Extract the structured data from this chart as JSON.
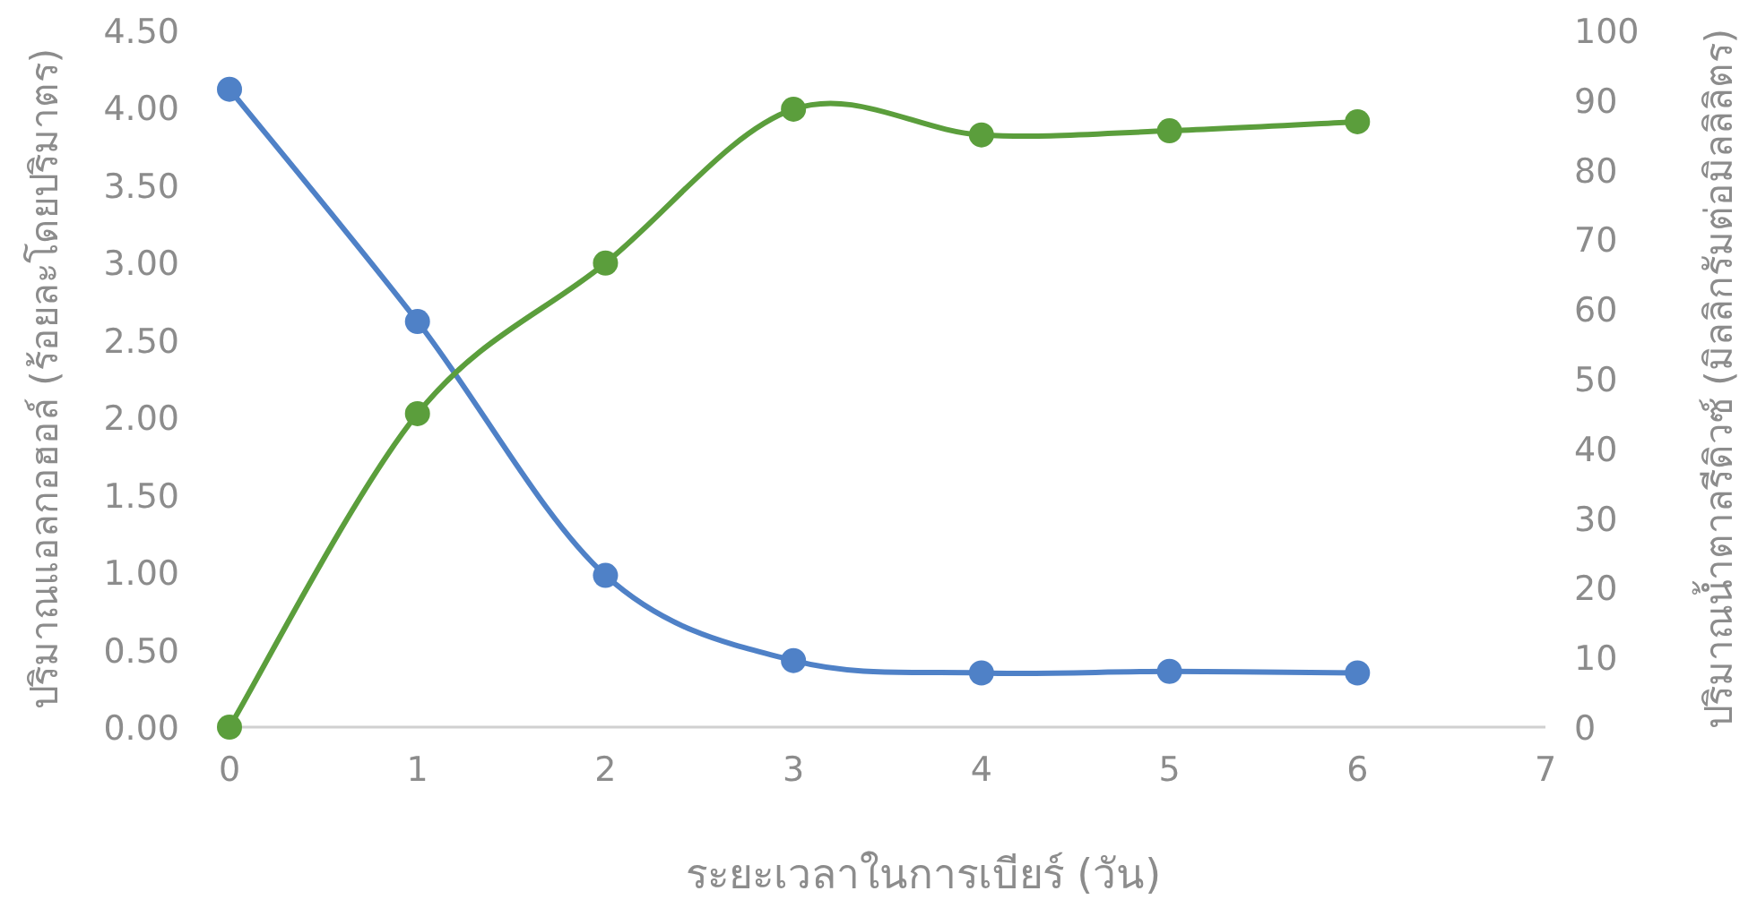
{
  "chart_data": {
    "type": "line",
    "xlabel": "ระยะเวลาในการเบียร์ (วัน)",
    "ylabel": "ปริมาณแอลกอฮอล์ (ร้อยละโดยปริมาตร)",
    "y2label": "ปริมาณน้ำตาลรีดิวซ์ (มิลลิกรัมต่อมิลลิลิตร)",
    "x": [
      0,
      1,
      2,
      3,
      4,
      5,
      6
    ],
    "series": [
      {
        "color": "#4f81c7",
        "values": [
          4.12,
          2.62,
          0.98,
          0.43,
          0.35,
          0.36,
          0.35
        ]
      },
      {
        "color": "#5b9e3c",
        "axis": "y2",
        "values": [
          0,
          45,
          66.6,
          88.7,
          85,
          85.6,
          86.9
        ]
      }
    ],
    "xlim": [
      0,
      7
    ],
    "xticks": [
      0,
      1,
      2,
      3,
      4,
      5,
      6,
      7
    ],
    "ylim": [
      0,
      4.5
    ],
    "yticks": [
      {
        "value": 0,
        "label": "0.00"
      },
      {
        "value": 0.5,
        "label": "0.50"
      },
      {
        "value": 1,
        "label": "1.00"
      },
      {
        "value": 1.5,
        "label": "1.50"
      },
      {
        "value": 2,
        "label": "2.00"
      },
      {
        "value": 2.5,
        "label": "2.50"
      },
      {
        "value": 3,
        "label": "3.00"
      },
      {
        "value": 3.5,
        "label": "3.50"
      },
      {
        "value": 4,
        "label": "4.00"
      },
      {
        "value": 4.5,
        "label": "4.50"
      }
    ],
    "y2lim": [
      0,
      100
    ],
    "y2ticks": [
      0,
      10,
      20,
      30,
      40,
      50,
      60,
      70,
      80,
      90,
      100
    ],
    "marker": "circle",
    "grid": false
  }
}
